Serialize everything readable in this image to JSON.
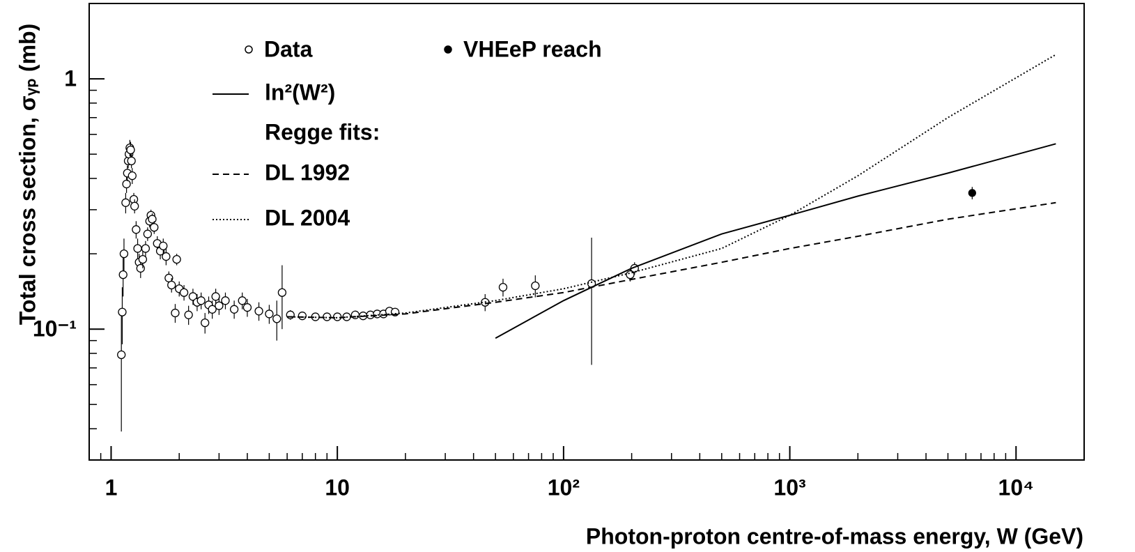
{
  "chart_data": {
    "type": "scatter",
    "x_label": "Photon-proton centre-of-mass energy, W (GeV)",
    "y_label": "Total cross section, σᵧₚ (mb)",
    "log_x": true,
    "log_y": true,
    "xlim": [
      0.8,
      20000
    ],
    "ylim": [
      0.03,
      2
    ],
    "xticks": [
      1,
      10,
      {
        "value": 100,
        "label": "10²"
      },
      {
        "value": 1000,
        "label": "10³"
      },
      {
        "value": 10000,
        "label": "10⁴"
      }
    ],
    "yticks": [
      {
        "value": 0.1,
        "label": "10⁻¹"
      },
      1
    ],
    "legend_heading": "Regge fits:",
    "series": [
      {
        "name": "Data",
        "kind": "points",
        "marker": "open",
        "color": "#000000",
        "x": [
          1.11,
          1.12,
          1.13,
          1.14,
          1.16,
          1.17,
          1.18,
          1.19,
          1.2,
          1.21,
          1.22,
          1.23,
          1.24,
          1.26,
          1.27,
          1.29,
          1.31,
          1.33,
          1.35,
          1.38,
          1.42,
          1.45,
          1.48,
          1.5,
          1.52,
          1.55,
          1.6,
          1.65,
          1.7,
          1.75,
          1.8,
          1.85,
          1.92,
          1.95,
          2.0,
          2.1,
          2.2,
          2.3,
          2.4,
          2.5,
          2.6,
          2.7,
          2.8,
          2.9,
          3.0,
          3.2,
          3.5,
          3.8,
          4.0,
          4.5,
          5.0,
          5.4,
          5.7,
          6.2,
          7,
          8,
          9,
          10,
          11,
          12,
          13,
          14,
          15,
          16,
          17,
          18,
          45,
          54,
          75,
          133,
          197,
          206
        ],
        "values": [
          0.079,
          0.117,
          0.165,
          0.2,
          0.32,
          0.38,
          0.42,
          0.47,
          0.5,
          0.53,
          0.52,
          0.47,
          0.41,
          0.33,
          0.31,
          0.25,
          0.21,
          0.185,
          0.175,
          0.19,
          0.21,
          0.24,
          0.27,
          0.285,
          0.275,
          0.255,
          0.22,
          0.205,
          0.215,
          0.195,
          0.16,
          0.15,
          0.116,
          0.19,
          0.145,
          0.14,
          0.114,
          0.135,
          0.128,
          0.13,
          0.106,
          0.125,
          0.12,
          0.135,
          0.124,
          0.13,
          0.12,
          0.13,
          0.122,
          0.118,
          0.115,
          0.11,
          0.14,
          0.114,
          0.113,
          0.112,
          0.112,
          0.112,
          0.112,
          0.114,
          0.113,
          0.114,
          0.115,
          0.115,
          0.118,
          0.117,
          0.128,
          0.147,
          0.149,
          0.152,
          0.165,
          0.175
        ],
        "errors": [
          0.04,
          0.03,
          0.03,
          0.03,
          0.03,
          0.03,
          0.03,
          0.03,
          0.03,
          0.04,
          0.04,
          0.03,
          0.03,
          0.02,
          0.02,
          0.02,
          0.02,
          0.015,
          0.015,
          0.015,
          0.015,
          0.015,
          0.015,
          0.015,
          0.015,
          0.015,
          0.015,
          0.015,
          0.015,
          0.015,
          0.01,
          0.01,
          0.01,
          0.01,
          0.01,
          0.01,
          0.01,
          0.01,
          0.01,
          0.01,
          0.01,
          0.01,
          0.01,
          0.01,
          0.01,
          0.01,
          0.01,
          0.01,
          0.01,
          0.01,
          0.01,
          0.02,
          0.04,
          0.005,
          0.004,
          0.004,
          0.004,
          0.004,
          0.004,
          0.004,
          0.004,
          0.004,
          0.004,
          0.004,
          0.004,
          0.004,
          0.01,
          0.012,
          0.015,
          0.08,
          0.01,
          0.01
        ]
      },
      {
        "name": "VHEeP reach",
        "kind": "points",
        "marker": "filled",
        "color": "#000000",
        "x": [
          6400
        ],
        "values": [
          0.35
        ],
        "errors": [
          0.02
        ]
      },
      {
        "name": "ln²(W²)",
        "kind": "line",
        "dash": "solid",
        "color": "#000000",
        "x": [
          50,
          100,
          200,
          500,
          1000,
          2000,
          5000,
          15000
        ],
        "values": [
          0.092,
          0.13,
          0.175,
          0.24,
          0.285,
          0.34,
          0.42,
          0.55
        ]
      },
      {
        "name": "DL 1992",
        "kind": "line",
        "dash": "dashed",
        "color": "#000000",
        "x": [
          6,
          10,
          20,
          50,
          100,
          200,
          500,
          1000,
          2000,
          5000,
          15000
        ],
        "values": [
          0.112,
          0.111,
          0.115,
          0.128,
          0.14,
          0.158,
          0.185,
          0.21,
          0.235,
          0.275,
          0.32
        ]
      },
      {
        "name": "DL 2004",
        "kind": "line",
        "dash": "dotted",
        "color": "#000000",
        "x": [
          6,
          10,
          20,
          50,
          100,
          200,
          500,
          1000,
          2000,
          5000,
          15000
        ],
        "values": [
          0.112,
          0.111,
          0.116,
          0.13,
          0.145,
          0.168,
          0.21,
          0.285,
          0.41,
          0.7,
          1.25
        ]
      }
    ]
  }
}
